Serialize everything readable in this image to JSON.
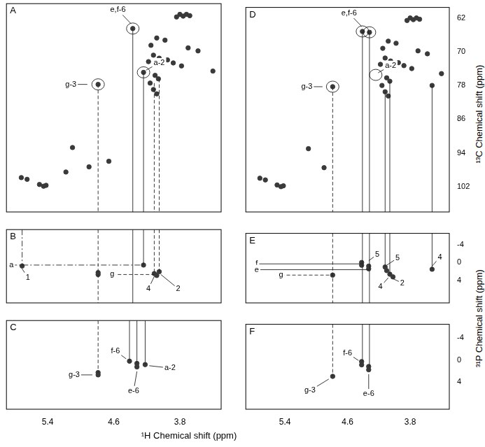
{
  "chart_data": {
    "type": "scatter",
    "color": "#3a3a3a",
    "x_label": "¹H Chemical shift (ppm)",
    "y_label_top": "¹³C Chemical shift (ppm)",
    "y_label_bottom": "³¹P Chemical shift (ppm)",
    "panels": [
      {
        "label": "A",
        "xlim": [
          5.9,
          3.3
        ],
        "ylim": [
          108,
          59.5
        ],
        "xticks": [
          5.4,
          4.6,
          3.8
        ],
        "yticks": [
          62,
          70,
          78,
          86,
          94,
          102
        ],
        "tick_labels": false,
        "peaks": {
          "x": [
            3.8,
            3.76,
            3.72,
            3.68,
            3.84,
            4.37,
            4.08,
            3.98,
            4.15,
            3.7,
            3.58,
            4.12,
            4.05,
            3.95,
            3.88,
            4.18,
            3.78,
            3.4,
            4.24,
            4.1,
            4.06,
            4.16,
            4.12,
            4.08,
            4.79,
            5.1,
            4.9,
            4.66,
            5.72,
            5.65,
            5.5,
            5.45,
            5.42,
            5.18
          ],
          "y": [
            62.0,
            62.4,
            62.0,
            62.3,
            62.6,
            65.3,
            67.5,
            68.0,
            69.2,
            69.8,
            70.5,
            71.5,
            72.2,
            72.6,
            73.3,
            73.0,
            74.0,
            75.2,
            75.5,
            76.2,
            77.0,
            78.0,
            79.5,
            80.5,
            78.3,
            93.0,
            97.5,
            96.2,
            100.0,
            100.4,
            101.6,
            102.0,
            101.8,
            98.7
          ]
        },
        "circles": [
          {
            "x": 4.37,
            "y": 65.3
          },
          {
            "x": 4.24,
            "y": 75.5
          },
          {
            "x": 4.79,
            "y": 78.3
          }
        ],
        "guides": [
          {
            "x": 4.37,
            "y": [
              65.3,
              108
            ],
            "line_style": "solid"
          },
          {
            "x": 4.24,
            "y": [
              75.5,
              108
            ],
            "line_style": "solid"
          },
          {
            "x": 4.79,
            "y": [
              78.3,
              108
            ],
            "line_style": "dashed"
          },
          {
            "x": 4.11,
            "y": [
              78.0,
              108
            ],
            "line_style": "dashed"
          },
          {
            "x": 4.05,
            "y": [
              77.0,
              108
            ],
            "line_style": "dashed"
          }
        ],
        "labels": [
          {
            "text": "e,f-6",
            "x": 4.55,
            "y": 61.0,
            "to": [
              4.39,
              64.2
            ],
            "line_style": "solid"
          },
          {
            "text": "a-2",
            "x": 4.05,
            "y": 73.3,
            "to": [
              4.21,
              75.0
            ],
            "line_style": "solid"
          },
          {
            "text": "g-3",
            "x": 5.12,
            "y": 78.3,
            "to": [
              4.92,
              78.3
            ],
            "line_style": "solid"
          }
        ]
      },
      {
        "label": "B",
        "xlim": [
          5.9,
          3.3
        ],
        "ylim": [
          9,
          -6.5
        ],
        "xticks": [
          5.4,
          4.6,
          3.8
        ],
        "yticks": [
          -4,
          0,
          4
        ],
        "tick_labels": false,
        "peaks": {
          "x": [
            5.71,
            4.24,
            4.79,
            4.79,
            4.11,
            4.05,
            4.08
          ],
          "y": [
            1.2,
            1.0,
            2.6,
            3.0,
            2.8,
            2.4,
            3.2
          ]
        },
        "circles": [],
        "guides": [
          {
            "x": 4.37,
            "y": [
              -6.5,
              9
            ],
            "line_style": "solid"
          },
          {
            "x": 4.24,
            "y": [
              -6.5,
              1.0
            ],
            "line_style": "solid"
          },
          {
            "x": 4.79,
            "y": [
              -6.5,
              9
            ],
            "line_style": "dashed"
          },
          {
            "x": 4.11,
            "y": [
              -6.5,
              2.8
            ],
            "line_style": "dashed"
          },
          {
            "x": 4.05,
            "y": [
              -6.5,
              2.4
            ],
            "line_style": "dashed"
          },
          {
            "x": 5.71,
            "y": [
              -6.5,
              1.2
            ],
            "line_style": "dashdot"
          }
        ],
        "labels": [
          {
            "text": "a",
            "x": 5.84,
            "y": 1.0,
            "to": [
              4.24,
              1.0
            ],
            "line_style": "dashdot"
          },
          {
            "text": "1",
            "x": 5.64,
            "y": 3.6,
            "to": [
              5.71,
              1.8
            ],
            "line_style": "solid"
          },
          {
            "text": "g",
            "x": 4.62,
            "y": 3.0,
            "to": [
              4.11,
              3.0
            ],
            "line_style": "dashed"
          },
          {
            "text": "4",
            "x": 4.18,
            "y": 6.0,
            "to": [
              4.11,
              3.4
            ],
            "line_style": "solid"
          },
          {
            "text": "2",
            "x": 3.82,
            "y": 6.0,
            "to": [
              4.03,
              3.0
            ],
            "line_style": "solid"
          }
        ]
      },
      {
        "label": "C",
        "xlim": [
          5.9,
          3.3
        ],
        "ylim": [
          9,
          -6.5
        ],
        "xticks": [
          5.4,
          4.6,
          3.8
        ],
        "yticks": [
          -4,
          0,
          4
        ],
        "tick_labels": "x",
        "peaks": {
          "x": [
            4.79,
            4.79,
            4.41,
            4.32,
            4.32,
            4.22
          ],
          "y": [
            2.6,
            3.0,
            0.6,
            1.0,
            1.6,
            1.2
          ]
        },
        "circles": [],
        "guides": [
          {
            "x": 4.41,
            "y": [
              -6.5,
              0.6
            ],
            "line_style": "solid"
          },
          {
            "x": 4.32,
            "y": [
              -6.5,
              1.0
            ],
            "line_style": "solid"
          },
          {
            "x": 4.22,
            "y": [
              -6.5,
              1.2
            ],
            "line_style": "solid"
          },
          {
            "x": 4.79,
            "y": [
              -6.5,
              2.6
            ],
            "line_style": "dashed"
          }
        ],
        "labels": [
          {
            "text": "g-3",
            "x": 5.08,
            "y": 3.0,
            "to": [
              4.86,
              3.0
            ],
            "line_style": "solid"
          },
          {
            "text": "f-6",
            "x": 4.58,
            "y": -1.2,
            "to": [
              4.45,
              0.2
            ],
            "line_style": "solid"
          },
          {
            "text": "e-6",
            "x": 4.36,
            "y": 5.8,
            "to": [
              4.32,
              2.4
            ],
            "line_style": "solid"
          },
          {
            "text": "a-2",
            "x": 3.92,
            "y": 1.8,
            "to": [
              4.17,
              1.4
            ],
            "line_style": "solid"
          }
        ]
      },
      {
        "label": "D",
        "xlim": [
          5.9,
          3.3
        ],
        "ylim": [
          108,
          59.5
        ],
        "xticks": [
          5.4,
          4.6,
          3.8
        ],
        "yticks": [
          62,
          70,
          78,
          86,
          94,
          102
        ],
        "tick_labels": "y",
        "peaks": {
          "x": [
            3.8,
            3.76,
            3.72,
            3.68,
            3.84,
            4.41,
            4.32,
            4.08,
            3.98,
            4.15,
            3.7,
            3.58,
            4.12,
            4.05,
            3.95,
            3.88,
            4.18,
            3.78,
            3.4,
            4.1,
            4.06,
            4.16,
            4.12,
            4.08,
            3.52,
            4.79,
            5.1,
            4.9,
            5.72,
            5.65,
            5.5,
            5.45,
            5.42
          ],
          "y": [
            62.0,
            62.4,
            62.0,
            62.3,
            62.6,
            65.2,
            65.4,
            67.5,
            68.0,
            69.2,
            69.8,
            70.5,
            71.5,
            72.2,
            72.6,
            73.3,
            73.0,
            74.0,
            75.2,
            76.2,
            77.0,
            78.0,
            79.5,
            80.5,
            78.0,
            78.3,
            93.0,
            97.5,
            100.0,
            100.4,
            101.6,
            102.0,
            101.8
          ]
        },
        "circles": [
          {
            "x": 4.41,
            "y": 65.2
          },
          {
            "x": 4.32,
            "y": 65.4
          },
          {
            "x": 4.24,
            "y": 75.5
          },
          {
            "x": 4.79,
            "y": 78.3
          }
        ],
        "guides": [
          {
            "x": 4.41,
            "y": [
              65.2,
              108
            ],
            "line_style": "solid"
          },
          {
            "x": 4.32,
            "y": [
              65.4,
              108
            ],
            "line_style": "solid"
          },
          {
            "x": 4.12,
            "y": [
              79.5,
              108
            ],
            "line_style": "solid"
          },
          {
            "x": 4.06,
            "y": [
              77.0,
              108
            ],
            "line_style": "solid"
          },
          {
            "x": 3.52,
            "y": [
              78.0,
              108
            ],
            "line_style": "solid"
          },
          {
            "x": 4.79,
            "y": [
              78.3,
              108
            ],
            "line_style": "dashed"
          }
        ],
        "labels": [
          {
            "text": "e,f-6",
            "x": 4.58,
            "y": 60.9,
            "to": [
              4.42,
              64.0
            ],
            "line_style": "solid"
          },
          {
            "text": "a-2",
            "x": 4.05,
            "y": 73.3,
            "to": [
              4.21,
              75.0
            ],
            "line_style": "solid"
          },
          {
            "text": "g-3",
            "x": 5.12,
            "y": 78.3,
            "to": [
              4.92,
              78.3
            ],
            "line_style": "solid"
          }
        ]
      },
      {
        "label": "E",
        "xlim": [
          5.9,
          3.3
        ],
        "ylim": [
          9,
          -6.5
        ],
        "xticks": [
          5.4,
          4.6,
          3.8
        ],
        "yticks": [
          -4,
          0,
          4
        ],
        "tick_labels": "y",
        "peaks": {
          "x": [
            4.42,
            4.42,
            4.33,
            4.33,
            4.12,
            4.1,
            4.06,
            4.02,
            3.52,
            4.79
          ],
          "y": [
            0.0,
            0.6,
            0.8,
            1.4,
            1.0,
            1.8,
            2.6,
            3.2,
            1.5,
            2.8
          ]
        },
        "circles": [],
        "guides": [
          {
            "x": 4.41,
            "y": [
              -6.5,
              9
            ],
            "line_style": "solid"
          },
          {
            "x": 4.32,
            "y": [
              -6.5,
              9
            ],
            "line_style": "solid"
          },
          {
            "x": 4.12,
            "y": [
              -6.5,
              1.0
            ],
            "line_style": "solid"
          },
          {
            "x": 4.06,
            "y": [
              -6.5,
              2.6
            ],
            "line_style": "solid"
          },
          {
            "x": 3.52,
            "y": [
              -6.5,
              1.5
            ],
            "line_style": "solid"
          },
          {
            "x": 4.79,
            "y": [
              -6.5,
              9
            ],
            "line_style": "dashed"
          }
        ],
        "labels": [
          {
            "text": "f",
            "x": 5.76,
            "y": 0.3,
            "to": [
              4.42,
              0.3
            ],
            "line_style": "solid"
          },
          {
            "text": "e",
            "x": 5.76,
            "y": 1.6,
            "to": [
              4.33,
              1.6
            ],
            "line_style": "solid"
          },
          {
            "text": "g",
            "x": 5.45,
            "y": 2.8,
            "to": [
              4.79,
              2.8
            ],
            "line_style": "dashed"
          },
          {
            "text": "5",
            "x": 4.22,
            "y": -1.8,
            "to": [
              4.33,
              -0.4
            ],
            "line_style": "solid"
          },
          {
            "text": "5",
            "x": 3.96,
            "y": -1.0,
            "to": [
              4.1,
              0.6
            ],
            "line_style": "solid"
          },
          {
            "text": "2",
            "x": 3.9,
            "y": 4.6,
            "to": [
              4.02,
              3.6
            ],
            "line_style": "solid"
          },
          {
            "text": "4",
            "x": 4.18,
            "y": 5.4,
            "to": [
              4.08,
              3.4
            ],
            "line_style": "solid"
          },
          {
            "text": "4",
            "x": 3.42,
            "y": -1.2,
            "to": [
              3.52,
              0.8
            ],
            "line_style": "solid"
          }
        ]
      },
      {
        "label": "F",
        "xlim": [
          5.9,
          3.3
        ],
        "ylim": [
          9,
          -6.5
        ],
        "xticks": [
          5.4,
          4.6,
          3.8
        ],
        "yticks": [
          -4,
          0,
          4
        ],
        "tick_labels": true,
        "peaks": {
          "x": [
            4.79,
            4.42,
            4.42,
            4.33,
            4.33
          ],
          "y": [
            3.0,
            0.3,
            0.9,
            1.2,
            1.8
          ]
        },
        "circles": [],
        "guides": [
          {
            "x": 4.41,
            "y": [
              -6.5,
              0.3
            ],
            "line_style": "solid"
          },
          {
            "x": 4.32,
            "y": [
              -6.5,
              1.2
            ],
            "line_style": "solid"
          },
          {
            "x": 4.79,
            "y": [
              -6.5,
              3.0
            ],
            "line_style": "dashed"
          }
        ],
        "labels": [
          {
            "text": "g-3",
            "x": 5.08,
            "y": 5.6,
            "to": [
              4.84,
              3.5
            ],
            "line_style": "solid"
          },
          {
            "text": "f-6",
            "x": 4.6,
            "y": -1.2,
            "to": [
              4.46,
              0.1
            ],
            "line_style": "solid"
          },
          {
            "text": "e-6",
            "x": 4.33,
            "y": 6.2,
            "to": [
              4.33,
              2.6
            ],
            "line_style": "solid"
          }
        ]
      }
    ]
  }
}
